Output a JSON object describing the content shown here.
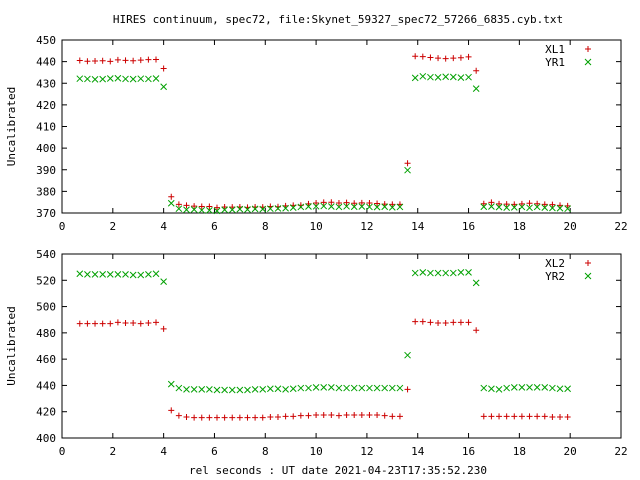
{
  "title": "HIRES continuum, spec72, file:Skynet_59327_spec72_57266_6835.cyb.txt",
  "xlabel": "rel seconds : UT date 2021-04-23T17:35:52.230",
  "chart_data": [
    {
      "type": "scatter",
      "ylabel": "Uncalibrated",
      "xlim": [
        0,
        22
      ],
      "ylim": [
        370,
        450
      ],
      "xticks": [
        0,
        2,
        4,
        6,
        8,
        10,
        12,
        14,
        16,
        18,
        20,
        22
      ],
      "yticks": [
        370,
        380,
        390,
        400,
        410,
        420,
        430,
        440,
        450
      ],
      "legend_position": "top-right",
      "series": [
        {
          "name": "XL1",
          "marker": "plus",
          "color": "#cc0000",
          "x": [
            0.7,
            1.0,
            1.3,
            1.6,
            1.9,
            2.2,
            2.5,
            2.8,
            3.1,
            3.4,
            3.7,
            4.0,
            4.3,
            4.6,
            4.9,
            5.2,
            5.5,
            5.8,
            6.1,
            6.4,
            6.7,
            7.0,
            7.3,
            7.6,
            7.9,
            8.2,
            8.5,
            8.8,
            9.1,
            9.4,
            9.7,
            10.0,
            10.3,
            10.6,
            10.9,
            11.2,
            11.5,
            11.8,
            12.1,
            12.4,
            12.7,
            13.0,
            13.3,
            13.6,
            13.9,
            14.2,
            14.5,
            14.8,
            15.1,
            15.4,
            15.7,
            16.0,
            16.3,
            16.6,
            16.9,
            17.2,
            17.5,
            17.8,
            18.1,
            18.4,
            18.7,
            19.0,
            19.3,
            19.6,
            19.9
          ],
          "y": [
            440.5,
            440.2,
            440.3,
            440.4,
            440.1,
            440.8,
            440.6,
            440.4,
            440.7,
            440.9,
            441.0,
            436.8,
            377.5,
            374.0,
            373.5,
            373.2,
            373.0,
            373.0,
            372.5,
            372.8,
            372.7,
            372.8,
            372.6,
            372.8,
            372.7,
            373.0,
            372.9,
            373.3,
            373.5,
            373.6,
            374.2,
            374.6,
            374.9,
            375.0,
            374.6,
            374.8,
            374.5,
            374.7,
            374.6,
            374.4,
            374.1,
            374.0,
            374.0,
            393.0,
            442.5,
            442.3,
            441.9,
            441.6,
            441.4,
            441.6,
            441.8,
            442.2,
            435.8,
            374.3,
            374.9,
            374.2,
            374.1,
            374.0,
            374.2,
            374.5,
            374.3,
            374.0,
            373.9,
            373.5,
            373.3
          ],
          "fix": "auto"
        },
        {
          "name": "YR1",
          "marker": "cross",
          "color": "#00a000",
          "x": [
            0.7,
            1.0,
            1.3,
            1.6,
            1.9,
            2.2,
            2.5,
            2.8,
            3.1,
            3.4,
            3.7,
            4.0,
            4.3,
            4.6,
            4.9,
            5.2,
            5.5,
            5.8,
            6.1,
            6.4,
            6.7,
            7.0,
            7.3,
            7.6,
            7.9,
            8.2,
            8.5,
            8.8,
            9.1,
            9.4,
            9.7,
            10.0,
            10.3,
            10.6,
            10.9,
            11.2,
            11.5,
            11.8,
            12.1,
            12.4,
            12.7,
            13.0,
            13.3,
            13.6,
            13.9,
            14.2,
            14.5,
            14.8,
            15.1,
            15.4,
            15.7,
            16.0,
            16.3,
            16.6,
            16.9,
            17.2,
            17.5,
            17.8,
            18.1,
            18.4,
            18.7,
            19.0,
            19.3,
            19.6,
            19.9
          ],
          "y": [
            432.1,
            432.0,
            431.8,
            431.9,
            432.2,
            432.3,
            432.0,
            431.9,
            432.1,
            432.0,
            432.2,
            428.4,
            374.5,
            372.0,
            371.5,
            371.6,
            371.3,
            371.2,
            371.0,
            371.5,
            371.5,
            371.8,
            371.6,
            371.9,
            371.8,
            372.0,
            372.1,
            372.2,
            372.5,
            372.8,
            373.0,
            373.1,
            373.2,
            373.0,
            372.8,
            373.1,
            372.9,
            373.0,
            372.8,
            372.7,
            372.9,
            372.6,
            372.8,
            389.8,
            432.5,
            433.2,
            432.8,
            432.7,
            433.0,
            432.9,
            432.6,
            432.8,
            427.5,
            372.9,
            373.0,
            372.7,
            372.5,
            372.6,
            372.8,
            372.4,
            372.8,
            372.5,
            372.3,
            372.2,
            372.0
          ]
        }
      ]
    },
    {
      "type": "scatter",
      "ylabel": "Uncalibrated",
      "xlim": [
        0,
        22
      ],
      "ylim": [
        400,
        540
      ],
      "xticks": [
        0,
        2,
        4,
        6,
        8,
        10,
        12,
        14,
        16,
        18,
        20,
        22
      ],
      "yticks": [
        400,
        420,
        440,
        460,
        480,
        500,
        520,
        540
      ],
      "legend_position": "top-right",
      "series": [
        {
          "name": "XL2",
          "marker": "plus",
          "color": "#cc0000",
          "x": [
            0.7,
            1.0,
            1.3,
            1.6,
            1.9,
            2.2,
            2.5,
            2.8,
            3.1,
            3.4,
            3.7,
            4.0,
            4.3,
            4.6,
            4.9,
            5.2,
            5.5,
            5.8,
            6.1,
            6.4,
            6.7,
            7.0,
            7.3,
            7.6,
            7.9,
            8.2,
            8.5,
            8.8,
            9.1,
            9.4,
            9.7,
            10.0,
            10.3,
            10.6,
            10.9,
            11.2,
            11.5,
            11.8,
            12.1,
            12.4,
            12.7,
            13.0,
            13.3,
            13.6,
            13.9,
            14.2,
            14.5,
            14.8,
            15.1,
            15.4,
            15.7,
            16.0,
            16.3,
            16.6,
            16.9,
            17.2,
            17.5,
            17.8,
            18.1,
            18.4,
            18.7,
            19.0,
            19.3,
            19.6,
            19.9
          ],
          "y": [
            487,
            487,
            487,
            487,
            487,
            488,
            487.5,
            487.5,
            487,
            487.5,
            488,
            483,
            421,
            417,
            416,
            415.5,
            415.5,
            415.5,
            415.5,
            415.5,
            415.5,
            415.5,
            415.5,
            415.5,
            415.5,
            416,
            416,
            416.5,
            416.5,
            417,
            417,
            417.5,
            417.5,
            417.5,
            417,
            417.5,
            417.5,
            417.5,
            417.5,
            417.5,
            417,
            416.5,
            416.5,
            437,
            488.5,
            488.5,
            488,
            487.5,
            487.5,
            488,
            488,
            488,
            482,
            416.5,
            416.5,
            416.5,
            416.5,
            416.5,
            416.5,
            416.5,
            416.5,
            416.5,
            416,
            416,
            416
          ]
        },
        {
          "name": "YR2",
          "marker": "cross",
          "color": "#00a000",
          "x": [
            0.7,
            1.0,
            1.3,
            1.6,
            1.9,
            2.2,
            2.5,
            2.8,
            3.1,
            3.4,
            3.7,
            4.0,
            4.3,
            4.6,
            4.9,
            5.2,
            5.5,
            5.8,
            6.1,
            6.4,
            6.7,
            7.0,
            7.3,
            7.6,
            7.9,
            8.2,
            8.5,
            8.8,
            9.1,
            9.4,
            9.7,
            10.0,
            10.3,
            10.6,
            10.9,
            11.2,
            11.5,
            11.8,
            12.1,
            12.4,
            12.7,
            13.0,
            13.3,
            13.6,
            13.9,
            14.2,
            14.5,
            14.8,
            15.1,
            15.4,
            15.7,
            16.0,
            16.3,
            16.6,
            16.9,
            17.2,
            17.5,
            17.8,
            18.1,
            18.4,
            18.7,
            19.0,
            19.3,
            19.6,
            19.9
          ],
          "y": [
            525,
            524.5,
            524.5,
            524.5,
            524.5,
            524.5,
            524.5,
            524,
            524,
            524.5,
            525,
            519,
            441,
            438,
            437,
            437,
            437,
            437,
            436.5,
            436.5,
            436.5,
            436.5,
            436.5,
            437,
            437,
            437.5,
            437.5,
            437,
            437.5,
            438,
            438,
            438.5,
            438.5,
            438.5,
            438,
            438,
            438,
            438,
            438,
            438,
            438,
            438,
            438,
            463,
            525.5,
            526,
            525.5,
            525.5,
            525.5,
            525.5,
            526,
            526,
            518,
            438,
            437.5,
            437,
            438,
            438.5,
            438.5,
            438.5,
            438.5,
            438.5,
            438,
            437.5,
            437.5
          ]
        }
      ]
    }
  ]
}
